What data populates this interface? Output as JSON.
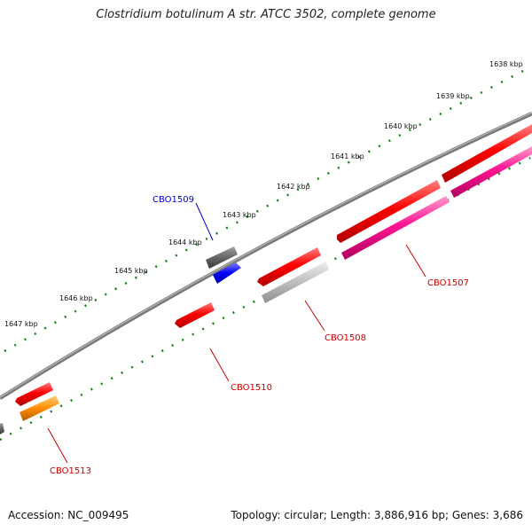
{
  "title": "Clostridium botulinum A str. ATCC 3502, complete genome",
  "footer": {
    "accession": "Accession: NC_009495",
    "summary": "Topology: circular; Length: 3,886,916 bp; Genes: 3,686"
  },
  "ruler": {
    "ticks": [
      {
        "label": "1638 kbp"
      },
      {
        "label": "1639 kbp"
      },
      {
        "label": "1640 kbp"
      },
      {
        "label": "1641 kbp"
      },
      {
        "label": "1642 kbp"
      },
      {
        "label": "1643 kbp"
      },
      {
        "label": "1644 kbp"
      },
      {
        "label": "1645 kbp"
      },
      {
        "label": "1646 kbp"
      },
      {
        "label": "1647 kbp"
      }
    ]
  },
  "genes": [
    {
      "label": "CBO1509",
      "color": "#0000cc"
    },
    {
      "label": "CBO1507",
      "color": "#cc0000"
    },
    {
      "label": "CBO1508",
      "color": "#cc0000"
    },
    {
      "label": "CBO1510",
      "color": "#cc0000"
    },
    {
      "label": "CBO1513",
      "color": "#cc0000"
    }
  ],
  "colors": {
    "cds_red": "#ff0000",
    "cds_pink": "#ff1493",
    "cds_gray": "#666666",
    "cds_lightgray": "#b8b8b8",
    "cds_blue": "#0000ff",
    "cds_orange": "#ff8c00",
    "backbone": "#808080",
    "tick_green": "#1a7f1a"
  }
}
